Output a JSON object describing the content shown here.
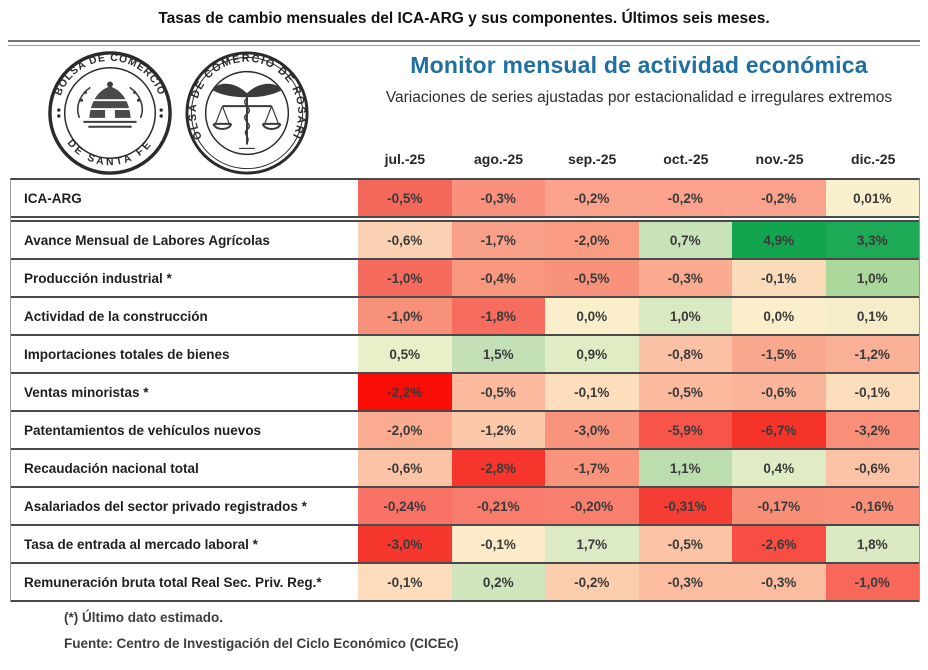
{
  "page_title": "Tasas de cambio mensuales del ICA-ARG y sus componentes. Últimos seis meses.",
  "header": {
    "monitor_title": "Monitor mensual de actividad económica",
    "monitor_subtitle": "Variaciones de series ajustadas por estacionalidad e irregulares extremos",
    "title_color": "#1F6FA3",
    "logos": {
      "santa_fe": {
        "top": "BOLSA DE COMERCIO",
        "bottom": "DE SANTA FE"
      },
      "rosario": {
        "ring": "BOLSA DE COMERCIO DE ROSARIO"
      }
    }
  },
  "chart_data": {
    "type": "heatmap",
    "title": "Monitor mensual de actividad económica",
    "subtitle": "Variaciones de series ajustadas por estacionalidad e irregulares extremos",
    "columns": [
      "jul.-25",
      "ago.-25",
      "sep.-25",
      "oct.-25",
      "nov.-25",
      "dic.-25"
    ],
    "palette_note": "per-row diverging scale: red = negative, cream = near zero, green = positive",
    "rows": [
      {
        "label": "ICA-ARG",
        "values": [
          -0.5,
          -0.3,
          -0.2,
          -0.2,
          -0.2,
          0.01
        ],
        "display": [
          "-0,5%",
          "-0,3%",
          "-0,2%",
          "-0,2%",
          "-0,2%",
          "0,01%"
        ],
        "colors": [
          "#F4685B",
          "#F9917D",
          "#FAA28B",
          "#FAA28B",
          "#FAA28B",
          "#FBF0CE"
        ]
      },
      {
        "label": "Avance Mensual de Labores Agrícolas",
        "values": [
          -0.6,
          -1.7,
          -2.0,
          0.7,
          4.9,
          3.3
        ],
        "display": [
          "-0,6%",
          "-1,7%",
          "-2,0%",
          "0,7%",
          "4,9%",
          "3,3%"
        ],
        "colors": [
          "#FAD2B3",
          "#F9A188",
          "#F99C82",
          "#C8E3BA",
          "#13A450",
          "#1EA956"
        ]
      },
      {
        "label": "Producción industrial *",
        "values": [
          -1.0,
          -0.4,
          -0.5,
          -0.3,
          -0.1,
          1.0
        ],
        "display": [
          "-1,0%",
          "-0,4%",
          "-0,5%",
          "-0,3%",
          "-0,1%",
          "1,0%"
        ],
        "colors": [
          "#F56C5E",
          "#F9977F",
          "#F9927A",
          "#FAAA8F",
          "#FBDCBA",
          "#ACD89B"
        ]
      },
      {
        "label": "Actividad de la construcción",
        "values": [
          -1.0,
          -1.8,
          0.0,
          1.0,
          0.0,
          0.1
        ],
        "display": [
          "-1,0%",
          "-1,8%",
          "0,0%",
          "1,0%",
          "0,0%",
          "0,1%"
        ],
        "colors": [
          "#F89179",
          "#F66C5E",
          "#FBEFCB",
          "#D9E9C1",
          "#FBEFCB",
          "#F5EDC9"
        ]
      },
      {
        "label": "Importaciones totales de bienes",
        "values": [
          0.5,
          1.5,
          0.9,
          -0.8,
          -1.5,
          -1.2
        ],
        "display": [
          "0,5%",
          "1,5%",
          "0,9%",
          "-0,8%",
          "-1,5%",
          "-1,2%"
        ],
        "colors": [
          "#E9F0C9",
          "#C3E0B6",
          "#DFECC4",
          "#FBC1A4",
          "#F9A88D",
          "#FAB096"
        ]
      },
      {
        "label": "Ventas minoristas *",
        "values": [
          -2.2,
          -0.5,
          -0.1,
          -0.5,
          -0.6,
          -0.1
        ],
        "display": [
          "-2,2%",
          "-0,5%",
          "-0,1%",
          "-0,5%",
          "-0,6%",
          "-0,1%"
        ],
        "colors": [
          "#F90D06",
          "#FBBA9E",
          "#FCDDBC",
          "#FBBA9E",
          "#FAB499",
          "#FCDDBC"
        ]
      },
      {
        "label": "Patentamientos de vehículos nuevos",
        "values": [
          -2.0,
          -1.2,
          -3.0,
          -5.9,
          -6.7,
          -3.2
        ],
        "display": [
          "-2,0%",
          "-1,2%",
          "-3,0%",
          "-5,9%",
          "-6,7%",
          "-3,2%"
        ],
        "colors": [
          "#FAAB90",
          "#FBC9AA",
          "#F9937B",
          "#F7544A",
          "#F63329",
          "#F98F78"
        ]
      },
      {
        "label": "Recaudación nacional total",
        "values": [
          -0.6,
          -2.8,
          -1.7,
          1.1,
          0.4,
          -0.6
        ],
        "display": [
          "-0,6%",
          "-2,8%",
          "-1,7%",
          "1,1%",
          "0,4%",
          "-0,6%"
        ],
        "colors": [
          "#FBC3A6",
          "#F6362D",
          "#F9937B",
          "#BCDEAF",
          "#DFECC5",
          "#FBC3A6"
        ]
      },
      {
        "label": "Asalariados del sector privado registrados *",
        "values": [
          -0.24,
          -0.21,
          -0.2,
          -0.31,
          -0.17,
          -0.16
        ],
        "display": [
          "-0,24%",
          "-0,21%",
          "-0,20%",
          "-0,31%",
          "-0,17%",
          "-0,16%"
        ],
        "colors": [
          "#F87365",
          "#F87B6B",
          "#F87E6D",
          "#F63D33",
          "#F98E78",
          "#F99079"
        ]
      },
      {
        "label": "Tasa de entrada al mercado laboral *",
        "values": [
          -3.0,
          -0.1,
          1.7,
          -0.5,
          -2.6,
          1.8
        ],
        "display": [
          "-3,0%",
          "-0,1%",
          "1,7%",
          "-0,5%",
          "-2,6%",
          "1,8%"
        ],
        "colors": [
          "#F6372E",
          "#FBEBC9",
          "#DCEBC5",
          "#FBC3A5",
          "#F74D42",
          "#DAEAC3"
        ]
      },
      {
        "label": "Remuneración bruta total Real Sec. Priv. Reg.*",
        "values": [
          -0.1,
          0.2,
          -0.2,
          -0.3,
          -0.3,
          -1.0
        ],
        "display": [
          "-0,1%",
          "0,2%",
          "-0,2%",
          "-0,3%",
          "-0,3%",
          "-1,0%"
        ],
        "colors": [
          "#FCDCBB",
          "#CFE6BD",
          "#FCCDAD",
          "#FBBC9F",
          "#FBBC9F",
          "#F7685A"
        ]
      }
    ]
  },
  "footer": {
    "note": "(*) Último dato estimado.",
    "source": "Fuente: Centro de Investigación del Ciclo Económico (CICEc)"
  }
}
